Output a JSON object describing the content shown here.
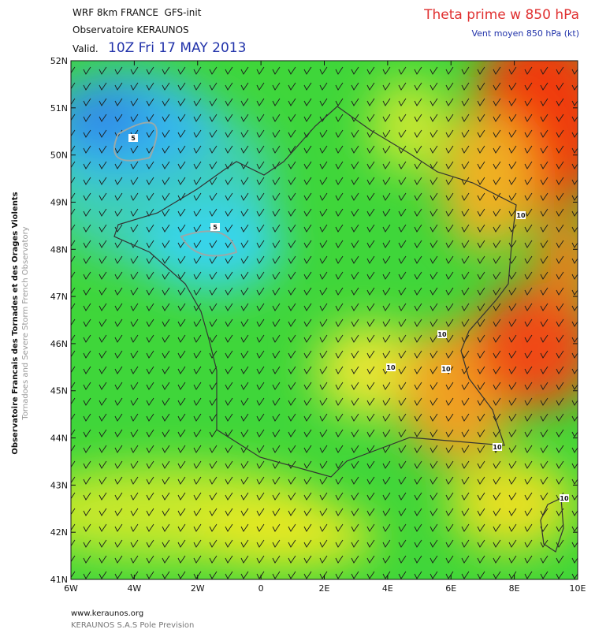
{
  "header": {
    "model": "WRF 8km FRANCE  GFS-init",
    "observatory": "Observatoire KERAUNOS",
    "valid_label": "Valid.",
    "valid_time": "10Z Fri 17 MAY 2013",
    "field": "Theta prime w 850 hPa",
    "wind": "Vent moyen 850 hPa (kt)"
  },
  "side": {
    "line1": "Observatoire Francais des Tornades et des Orages Violents",
    "line2": "Tornadoes and Severe Storm French Observatory"
  },
  "map": {
    "lat_labels": [
      "52N",
      "51N",
      "50N",
      "49N",
      "48N",
      "47N",
      "46N",
      "45N",
      "44N",
      "43N",
      "42N",
      "41N"
    ],
    "lon_labels": [
      "6W",
      "4W",
      "2W",
      "0",
      "2E",
      "4E",
      "6E",
      "8E",
      "10E"
    ],
    "contour_labels": [
      5,
      5,
      10,
      10,
      10,
      10,
      10,
      10
    ]
  },
  "footer": {
    "url": "www.keraunos.org",
    "company": "KERAUNOS S.A.S Pole Prevision"
  }
}
